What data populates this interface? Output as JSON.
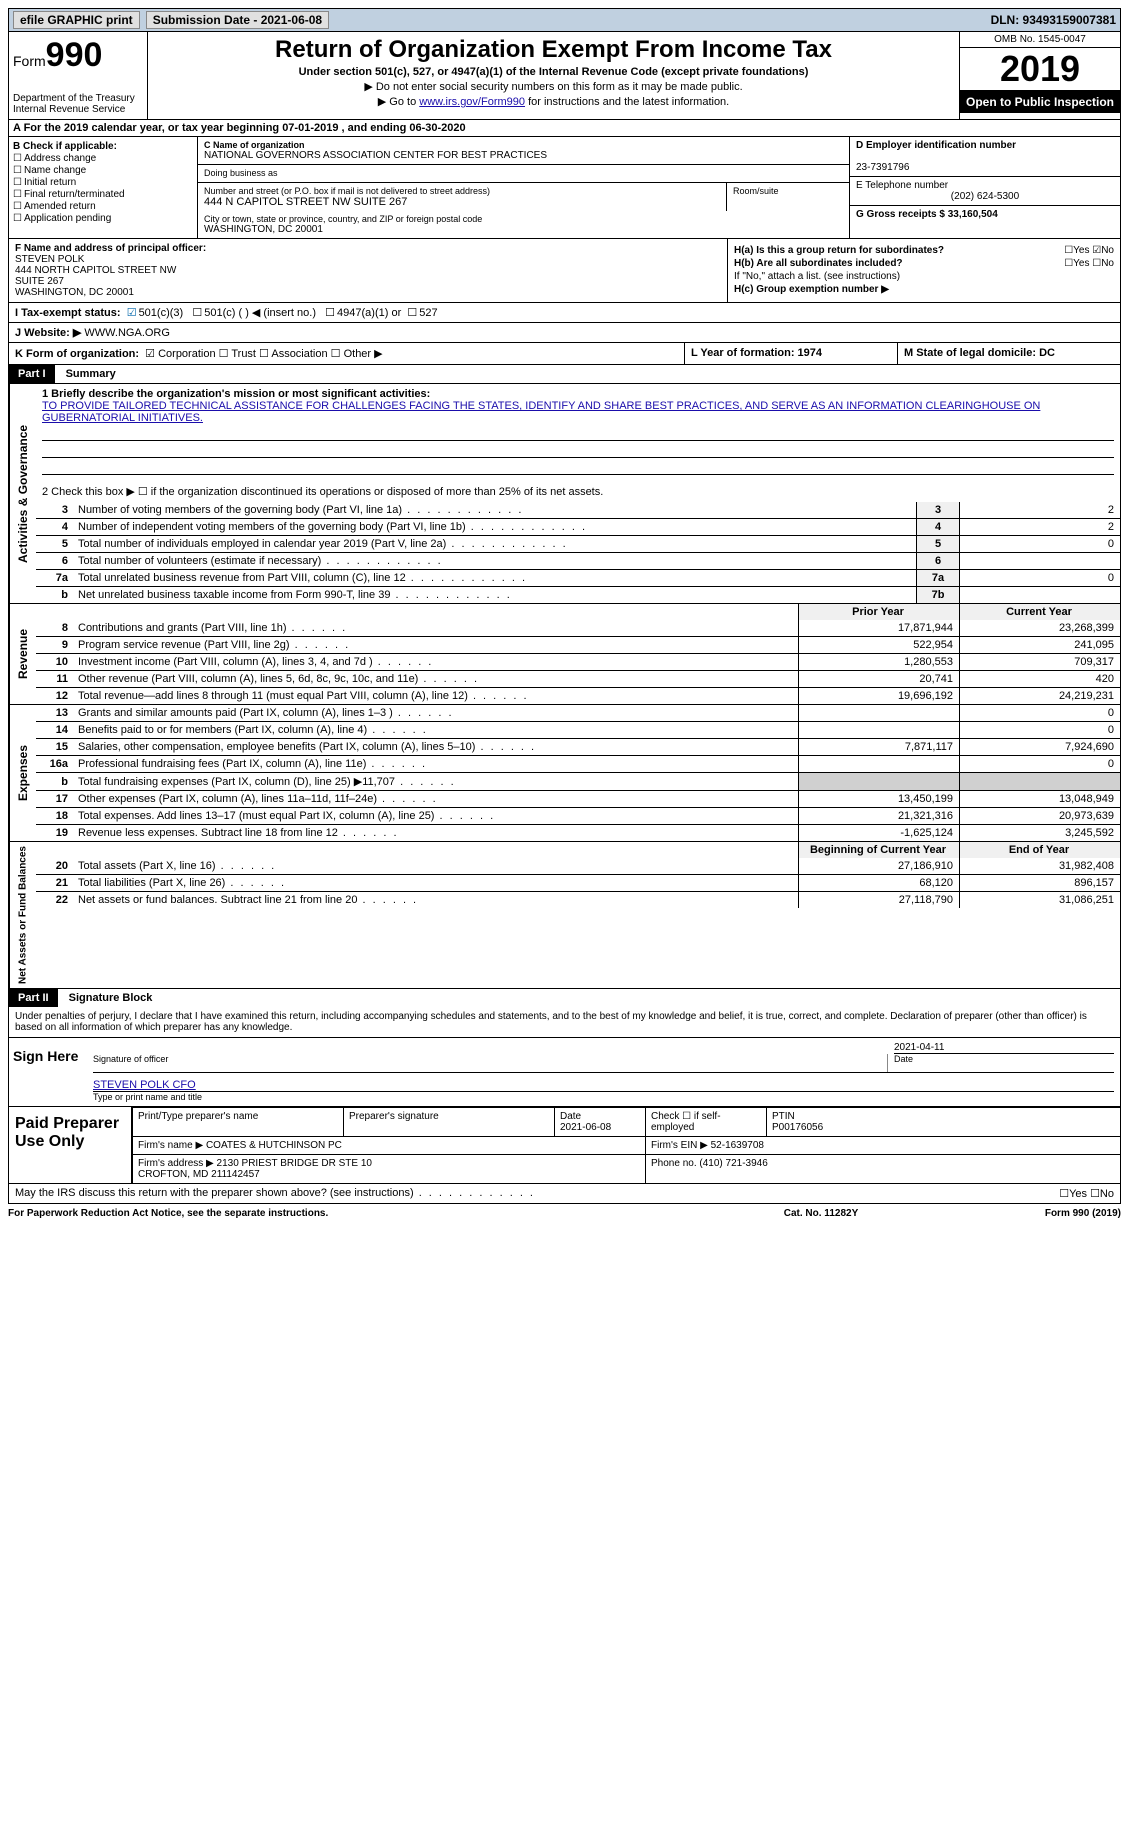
{
  "topbar": {
    "efile_label": "efile GRAPHIC print",
    "submission_label": "Submission Date - 2021-06-08",
    "dln_label": "DLN: 93493159007381"
  },
  "header": {
    "form_word": "Form",
    "form_number": "990",
    "dept": "Department of the Treasury\nInternal Revenue Service",
    "title": "Return of Organization Exempt From Income Tax",
    "subtitle": "Under section 501(c), 527, or 4947(a)(1) of the Internal Revenue Code (except private foundations)",
    "note1": "▶ Do not enter social security numbers on this form as it may be made public.",
    "note2_prefix": "▶ Go to ",
    "note2_link": "www.irs.gov/Form990",
    "note2_suffix": " for instructions and the latest information.",
    "omb": "OMB No. 1545-0047",
    "year": "2019",
    "open_pub": "Open to Public Inspection"
  },
  "rowA": "A For the 2019 calendar year, or tax year beginning 07-01-2019   , and ending 06-30-2020",
  "sectionB": {
    "label": "B Check if applicable:",
    "opts": [
      "Address change",
      "Name change",
      "Initial return",
      "Final return/terminated",
      "Amended return",
      "Application pending"
    ]
  },
  "sectionC": {
    "name_label": "C Name of organization",
    "name": "NATIONAL GOVERNORS ASSOCIATION CENTER FOR BEST PRACTICES",
    "dba_label": "Doing business as",
    "street_label": "Number and street (or P.O. box if mail is not delivered to street address)",
    "room_label": "Room/suite",
    "street": "444 N CAPITOL STREET NW SUITE 267",
    "city_label": "City or town, state or province, country, and ZIP or foreign postal code",
    "city": "WASHINGTON, DC  20001"
  },
  "sectionD": {
    "ein_label": "D Employer identification number",
    "ein": "23-7391796",
    "tel_label": "E Telephone number",
    "tel": "(202) 624-5300",
    "gross_label": "G Gross receipts $ 33,160,504"
  },
  "sectionF": {
    "label": "F  Name and address of principal officer:",
    "name": "STEVEN POLK",
    "addr1": "444 NORTH CAPITOL STREET NW",
    "addr2": "SUITE 267",
    "addr3": "WASHINGTON, DC  20001"
  },
  "sectionH": {
    "ha": "H(a)  Is this a group return for subordinates?",
    "ha_ans": "☐Yes ☑No",
    "hb": "H(b)  Are all subordinates included?",
    "hb_ans": "☐Yes ☐No",
    "hb_note": "If \"No,\" attach a list. (see instructions)",
    "hc": "H(c)  Group exemption number ▶"
  },
  "rowI": {
    "label": "I   Tax-exempt status:",
    "opt1": "501(c)(3)",
    "opt2": "501(c) (  ) ◀ (insert no.)",
    "opt3": "4947(a)(1) or",
    "opt4": "527"
  },
  "rowJ": {
    "label": "J   Website: ▶",
    "val": "WWW.NGA.ORG"
  },
  "rowK": {
    "label": "K Form of organization:",
    "opts": "☑ Corporation  ☐ Trust  ☐ Association  ☐ Other ▶"
  },
  "rowL": "L Year of formation: 1974",
  "rowM": "M State of legal domicile: DC",
  "part1": {
    "hdr": "Part I",
    "title": "Summary",
    "line1_label": "1  Briefly describe the organization's mission or most significant activities:",
    "mission": "TO PROVIDE TAILORED TECHNICAL ASSISTANCE FOR CHALLENGES FACING THE STATES, IDENTIFY AND SHARE BEST PRACTICES, AND SERVE AS AN INFORMATION CLEARINGHOUSE ON GUBERNATORIAL INITIATIVES.",
    "line2": "2   Check this box ▶ ☐  if the organization discontinued its operations or disposed of more than 25% of its net assets.",
    "rows_act": [
      {
        "n": "3",
        "d": "Number of voting members of the governing body (Part VI, line 1a)",
        "b": "3",
        "v": "2"
      },
      {
        "n": "4",
        "d": "Number of independent voting members of the governing body (Part VI, line 1b)",
        "b": "4",
        "v": "2"
      },
      {
        "n": "5",
        "d": "Total number of individuals employed in calendar year 2019 (Part V, line 2a)",
        "b": "5",
        "v": "0"
      },
      {
        "n": "6",
        "d": "Total number of volunteers (estimate if necessary)",
        "b": "6",
        "v": ""
      },
      {
        "n": "7a",
        "d": "Total unrelated business revenue from Part VIII, column (C), line 12",
        "b": "7a",
        "v": "0"
      },
      {
        "n": "b",
        "d": "Net unrelated business taxable income from Form 990-T, line 39",
        "b": "7b",
        "v": ""
      }
    ],
    "col_hdr_prior": "Prior Year",
    "col_hdr_curr": "Current Year",
    "rows_rev": [
      {
        "n": "8",
        "d": "Contributions and grants (Part VIII, line 1h)",
        "p": "17,871,944",
        "c": "23,268,399"
      },
      {
        "n": "9",
        "d": "Program service revenue (Part VIII, line 2g)",
        "p": "522,954",
        "c": "241,095"
      },
      {
        "n": "10",
        "d": "Investment income (Part VIII, column (A), lines 3, 4, and 7d )",
        "p": "1,280,553",
        "c": "709,317"
      },
      {
        "n": "11",
        "d": "Other revenue (Part VIII, column (A), lines 5, 6d, 8c, 9c, 10c, and 11e)",
        "p": "20,741",
        "c": "420"
      },
      {
        "n": "12",
        "d": "Total revenue—add lines 8 through 11 (must equal Part VIII, column (A), line 12)",
        "p": "19,696,192",
        "c": "24,219,231"
      }
    ],
    "rows_exp": [
      {
        "n": "13",
        "d": "Grants and similar amounts paid (Part IX, column (A), lines 1–3 )",
        "p": "",
        "c": "0"
      },
      {
        "n": "14",
        "d": "Benefits paid to or for members (Part IX, column (A), line 4)",
        "p": "",
        "c": "0"
      },
      {
        "n": "15",
        "d": "Salaries, other compensation, employee benefits (Part IX, column (A), lines 5–10)",
        "p": "7,871,117",
        "c": "7,924,690"
      },
      {
        "n": "16a",
        "d": "Professional fundraising fees (Part IX, column (A), line 11e)",
        "p": "",
        "c": "0"
      },
      {
        "n": "b",
        "d": "Total fundraising expenses (Part IX, column (D), line 25) ▶11,707",
        "p": "shade",
        "c": "shade"
      },
      {
        "n": "17",
        "d": "Other expenses (Part IX, column (A), lines 11a–11d, 11f–24e)",
        "p": "13,450,199",
        "c": "13,048,949"
      },
      {
        "n": "18",
        "d": "Total expenses. Add lines 13–17 (must equal Part IX, column (A), line 25)",
        "p": "21,321,316",
        "c": "20,973,639"
      },
      {
        "n": "19",
        "d": "Revenue less expenses. Subtract line 18 from line 12",
        "p": "-1,625,124",
        "c": "3,245,592"
      }
    ],
    "col_hdr_beg": "Beginning of Current Year",
    "col_hdr_end": "End of Year",
    "rows_net": [
      {
        "n": "20",
        "d": "Total assets (Part X, line 16)",
        "p": "27,186,910",
        "c": "31,982,408"
      },
      {
        "n": "21",
        "d": "Total liabilities (Part X, line 26)",
        "p": "68,120",
        "c": "896,157"
      },
      {
        "n": "22",
        "d": "Net assets or fund balances. Subtract line 21 from line 20",
        "p": "27,118,790",
        "c": "31,086,251"
      }
    ],
    "side_act": "Activities & Governance",
    "side_rev": "Revenue",
    "side_exp": "Expenses",
    "side_net": "Net Assets or Fund Balances"
  },
  "part2": {
    "hdr": "Part II",
    "title": "Signature Block",
    "decl": "Under penalties of perjury, I declare that I have examined this return, including accompanying schedules and statements, and to the best of my knowledge and belief, it is true, correct, and complete. Declaration of preparer (other than officer) is based on all information of which preparer has any knowledge.",
    "sign_here": "Sign Here",
    "sig_officer": "Signature of officer",
    "sig_date": "2021-04-11",
    "date_lbl": "Date",
    "officer_name": "STEVEN POLK CFO",
    "type_name": "Type or print name and title",
    "paid_prep": "Paid Preparer Use Only",
    "pt_name_lbl": "Print/Type preparer's name",
    "pt_sig_lbl": "Preparer's signature",
    "pt_date_lbl": "Date",
    "pt_date": "2021-06-08",
    "pt_check_lbl": "Check ☐ if self-employed",
    "ptin_lbl": "PTIN",
    "ptin": "P00176056",
    "firm_name_lbl": "Firm's name    ▶",
    "firm_name": "COATES & HUTCHINSON PC",
    "firm_ein_lbl": "Firm's EIN ▶",
    "firm_ein": "52-1639708",
    "firm_addr_lbl": "Firm's address ▶",
    "firm_addr": "2130 PRIEST BRIDGE DR STE 10\nCROFTON, MD  211142457",
    "phone_lbl": "Phone no.",
    "phone": "(410) 721-3946",
    "may_irs": "May the IRS discuss this return with the preparer shown above? (see instructions)",
    "may_ans": "☐Yes  ☐No"
  },
  "footer": {
    "left": "For Paperwork Reduction Act Notice, see the separate instructions.",
    "mid": "Cat. No. 11282Y",
    "right": "Form 990 (2019)"
  }
}
